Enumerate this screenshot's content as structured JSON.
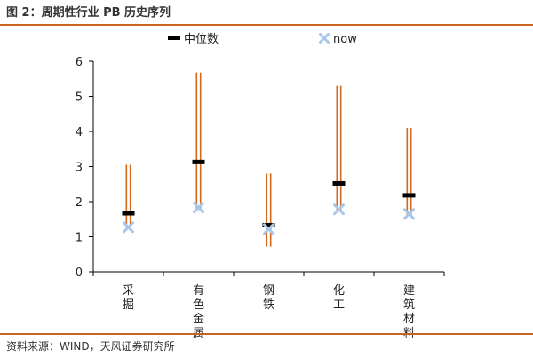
{
  "figure": {
    "title": "图 2：周期性行业 PB 历史序列",
    "source": "资料来源：WIND，天风证券研究所"
  },
  "chart_data": {
    "type": "range-bar",
    "categories": [
      "采掘",
      "有色金属",
      "钢铁",
      "化工",
      "建筑材料"
    ],
    "series": [
      {
        "name": "max",
        "values": [
          3.05,
          5.68,
          2.8,
          5.3,
          4.1
        ]
      },
      {
        "name": "min",
        "values": [
          1.25,
          1.8,
          0.72,
          1.75,
          1.6
        ]
      },
      {
        "name": "中位数",
        "values": [
          1.67,
          3.13,
          1.33,
          2.52,
          2.18
        ]
      },
      {
        "name": "now",
        "values": [
          1.27,
          1.83,
          1.22,
          1.78,
          1.65
        ]
      }
    ],
    "legend": [
      "中位数",
      "now"
    ],
    "legend_position": "top",
    "ylim": [
      0,
      6
    ],
    "yticks": [
      0,
      1,
      2,
      3,
      4,
      5,
      6
    ],
    "grid": false,
    "colors": {
      "range": "#d2691e",
      "median": "#000000",
      "now": "#a9c7ea",
      "axis": "#000000"
    }
  }
}
